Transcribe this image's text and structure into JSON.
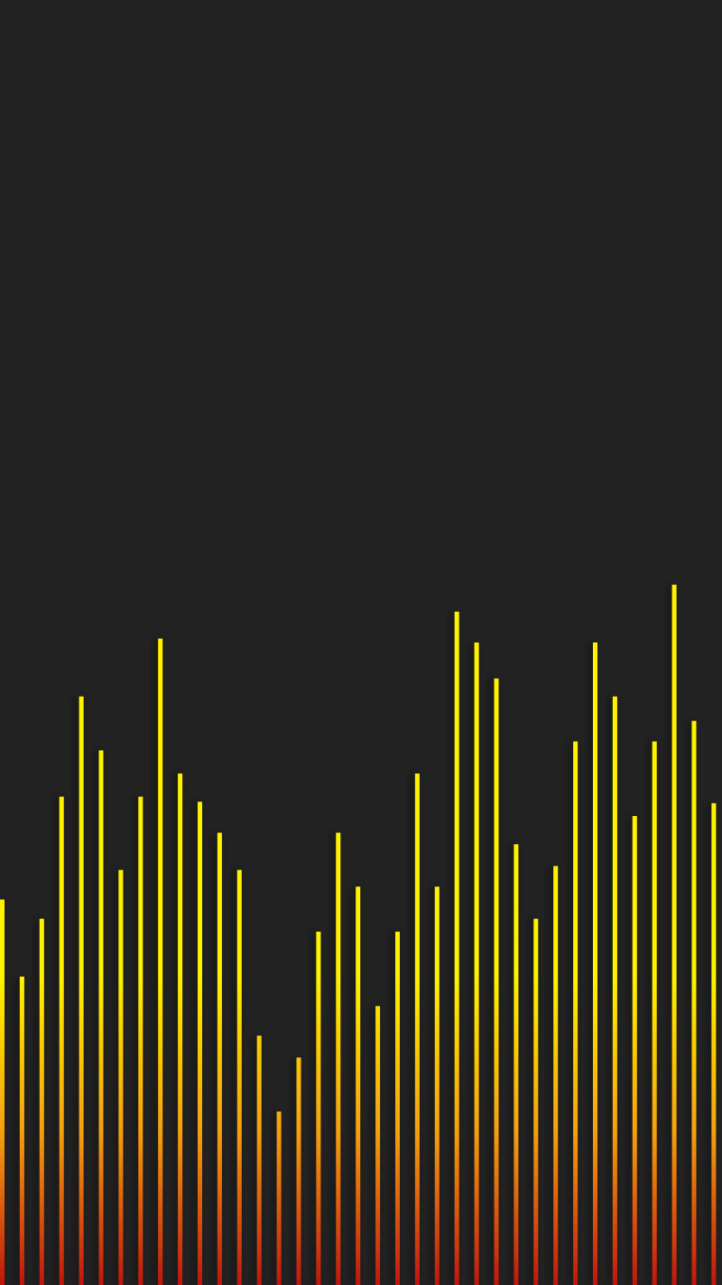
{
  "wallpaper": {
    "background_color": "#222222",
    "style": "audio equalizer bars",
    "bar_color_top": "#FFF200",
    "bar_color_mid": "#F5A00A",
    "bar_color_bottom": "#C0160C",
    "bar_count": 37,
    "levels": [
      0.3,
      0.24,
      0.285,
      0.38,
      0.458,
      0.416,
      0.323,
      0.38,
      0.503,
      0.398,
      0.376,
      0.352,
      0.323,
      0.194,
      0.135,
      0.177,
      0.275,
      0.352,
      0.31,
      0.217,
      0.275,
      0.398,
      0.31,
      0.524,
      0.5,
      0.472,
      0.343,
      0.285,
      0.326,
      0.423,
      0.5,
      0.458,
      0.365,
      0.423,
      0.545,
      0.439,
      0.375
    ]
  }
}
